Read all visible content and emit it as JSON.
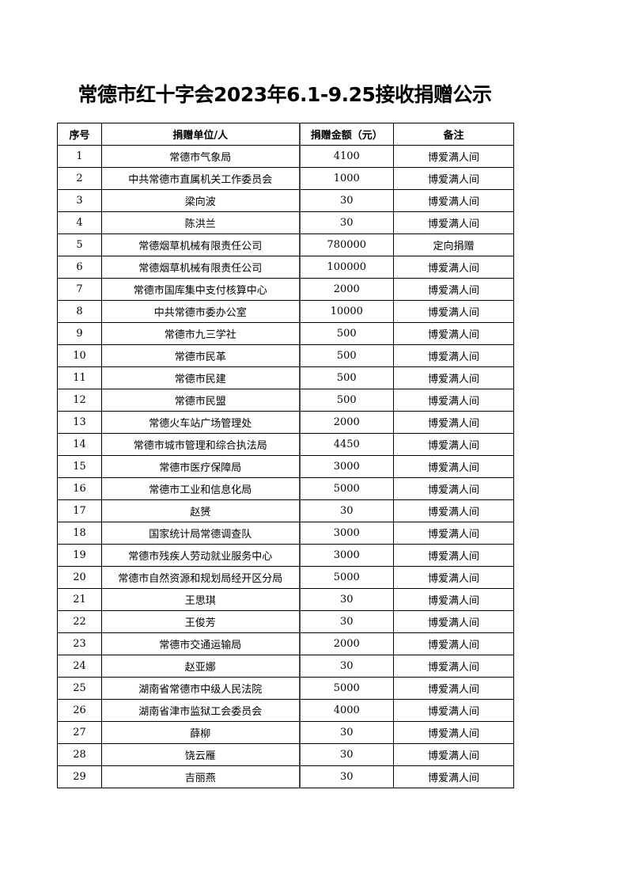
{
  "title": "常德市红十字会2023年6.1-9.25接收捐赠公示",
  "table": {
    "headers": [
      "序号",
      "捐赠单位/人",
      "捐赠金额（元）",
      "备注"
    ],
    "rows": [
      [
        "1",
        "常德市气象局",
        "4100",
        "博爱满人间"
      ],
      [
        "2",
        "中共常德市直属机关工作委员会",
        "1000",
        "博爱满人间"
      ],
      [
        "3",
        "梁向波",
        "30",
        "博爱满人间"
      ],
      [
        "4",
        "陈洪兰",
        "30",
        "博爱满人间"
      ],
      [
        "5",
        "常德烟草机械有限责任公司",
        "780000",
        "定向捐赠"
      ],
      [
        "6",
        "常德烟草机械有限责任公司",
        "100000",
        "博爱满人间"
      ],
      [
        "7",
        "常德市国库集中支付核算中心",
        "2000",
        "博爱满人间"
      ],
      [
        "8",
        "中共常德市委办公室",
        "10000",
        "博爱满人间"
      ],
      [
        "9",
        "常德市九三学社",
        "500",
        "博爱满人间"
      ],
      [
        "10",
        "常德市民革",
        "500",
        "博爱满人间"
      ],
      [
        "11",
        "常德市民建",
        "500",
        "博爱满人间"
      ],
      [
        "12",
        "常德市民盟",
        "500",
        "博爱满人间"
      ],
      [
        "13",
        "常德火车站广场管理处",
        "2000",
        "博爱满人间"
      ],
      [
        "14",
        "常德市城市管理和综合执法局",
        "4450",
        "博爱满人间"
      ],
      [
        "15",
        "常德市医疗保障局",
        "3000",
        "博爱满人间"
      ],
      [
        "16",
        "常德市工业和信息化局",
        "5000",
        "博爱满人间"
      ],
      [
        "17",
        "赵赟",
        "30",
        "博爱满人间"
      ],
      [
        "18",
        "国家统计局常德调查队",
        "3000",
        "博爱满人间"
      ],
      [
        "19",
        "常德市残疾人劳动就业服务中心",
        "3000",
        "博爱满人间"
      ],
      [
        "20",
        "常德市自然资源和规划局经开区分局",
        "5000",
        "博爱满人间"
      ],
      [
        "21",
        "王思琪",
        "30",
        "博爱满人间"
      ],
      [
        "22",
        "王俊芳",
        "30",
        "博爱满人间"
      ],
      [
        "23",
        "常德市交通运输局",
        "2000",
        "博爱满人间"
      ],
      [
        "24",
        "赵亚娜",
        "30",
        "博爱满人间"
      ],
      [
        "25",
        "湖南省常德市中级人民法院",
        "5000",
        "博爱满人间"
      ],
      [
        "26",
        "湖南省津市监狱工会委员会",
        "4000",
        "博爱满人间"
      ],
      [
        "27",
        "薛柳",
        "30",
        "博爱满人间"
      ],
      [
        "28",
        "饶云雁",
        "30",
        "博爱满人间"
      ],
      [
        "29",
        "吉丽燕",
        "30",
        "博爱满人间"
      ]
    ]
  }
}
